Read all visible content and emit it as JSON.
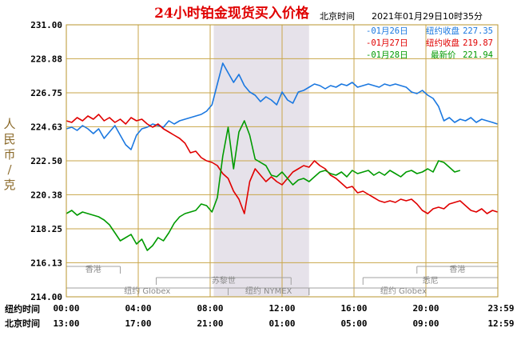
{
  "title": "24小时铂金现货买入价格",
  "header": {
    "zone_label": "北京时间",
    "timestamp": "2021年01月29日10时35分"
  },
  "ylabel": "人民币/克",
  "x_rows": {
    "ny_label": "纽约时间",
    "bj_label": "北京时间",
    "ny_ticks": [
      "00:00",
      "04:00",
      "08:00",
      "12:00",
      "16:00",
      "20:00",
      "23:59"
    ],
    "bj_ticks": [
      "13:00",
      "17:00",
      "21:00",
      "01:00",
      "05:00",
      "09:00",
      "12:59"
    ]
  },
  "legend": [
    {
      "date": "-01月26日",
      "label": "纽约收盘",
      "value": "227.35",
      "color": "#1b78e0"
    },
    {
      "date": "-01月27日",
      "label": "纽约收盘",
      "value": "219.87",
      "color": "#e00000"
    },
    {
      "date": "-01月28日",
      "label": "最新价",
      "value": "221.94",
      "color": "#009a00"
    }
  ],
  "markets": [
    {
      "label": "香港",
      "row": 1,
      "start": 0,
      "end": 3
    },
    {
      "label": "香港",
      "row": 1,
      "start": 19.5,
      "end": 24
    },
    {
      "label": "苏黎世",
      "row": 2,
      "start": 5,
      "end": 12.5
    },
    {
      "label": "悉尼",
      "row": 2,
      "start": 16.5,
      "end": 24
    },
    {
      "label": "纽约 Globex",
      "row": 3,
      "start": 0,
      "end": 9
    },
    {
      "label": "纽约 NYMEX",
      "row": 3,
      "start": 9,
      "end": 13.5
    },
    {
      "label": "纽约 Globex",
      "row": 3,
      "start": 13.5,
      "end": 24
    }
  ],
  "chart_data": {
    "type": "line",
    "title": "24小时铂金现货买入价格",
    "ylabel": "人民币/克",
    "ylim": [
      214.0,
      231.0
    ],
    "xlim": [
      0,
      24
    ],
    "x_unit": "hours (纽约时间)",
    "yticks": [
      "214.00",
      "216.13",
      "218.25",
      "220.38",
      "222.50",
      "224.63",
      "226.75",
      "228.88",
      "231.00"
    ],
    "shaded_period": [
      8.2,
      13.5
    ],
    "grid": true,
    "legend_position": "top-right",
    "series": [
      {
        "name": "01月26日",
        "color": "#1b78e0",
        "x": [
          0,
          0.3,
          0.6,
          0.9,
          1.2,
          1.5,
          1.8,
          2.1,
          2.4,
          2.7,
          3.0,
          3.3,
          3.6,
          3.9,
          4.2,
          4.5,
          4.8,
          5.1,
          5.4,
          5.7,
          6.0,
          6.3,
          6.6,
          6.9,
          7.2,
          7.5,
          7.8,
          8.1,
          8.4,
          8.7,
          9.0,
          9.3,
          9.6,
          9.9,
          10.2,
          10.5,
          10.8,
          11.1,
          11.4,
          11.7,
          12.0,
          12.3,
          12.6,
          12.9,
          13.2,
          13.5,
          13.8,
          14.1,
          14.4,
          14.7,
          15.0,
          15.3,
          15.6,
          15.9,
          16.2,
          16.5,
          16.8,
          17.1,
          17.4,
          17.7,
          18.0,
          18.3,
          18.6,
          18.9,
          19.2,
          19.5,
          19.8,
          20.1,
          20.4,
          20.7,
          21.0,
          21.3,
          21.6,
          21.9,
          22.2,
          22.5,
          22.8,
          23.1,
          23.4,
          23.7,
          23.98
        ],
        "values": [
          224.5,
          224.6,
          224.4,
          224.7,
          224.5,
          224.2,
          224.5,
          223.9,
          224.3,
          224.7,
          224.1,
          223.5,
          223.2,
          224.1,
          224.5,
          224.6,
          224.8,
          224.7,
          224.6,
          225.0,
          224.8,
          225.0,
          225.1,
          225.2,
          225.3,
          225.4,
          225.6,
          226.0,
          227.3,
          228.6,
          228.0,
          227.4,
          227.9,
          227.2,
          226.8,
          226.6,
          226.2,
          226.5,
          226.3,
          226.0,
          226.8,
          226.3,
          226.1,
          226.8,
          226.9,
          227.1,
          227.3,
          227.2,
          227.0,
          227.2,
          227.1,
          227.3,
          227.2,
          227.4,
          227.1,
          227.2,
          227.3,
          227.2,
          227.1,
          227.3,
          227.2,
          227.3,
          227.2,
          227.1,
          226.8,
          226.7,
          226.9,
          226.6,
          226.4,
          225.9,
          225.0,
          225.2,
          224.9,
          225.1,
          225.0,
          225.2,
          224.9,
          225.1,
          225.0,
          224.9,
          224.8
        ]
      },
      {
        "name": "01月27日",
        "color": "#e00000",
        "x": [
          0,
          0.3,
          0.6,
          0.9,
          1.2,
          1.5,
          1.8,
          2.1,
          2.4,
          2.7,
          3.0,
          3.3,
          3.6,
          3.9,
          4.2,
          4.5,
          4.8,
          5.1,
          5.4,
          5.7,
          6.0,
          6.3,
          6.6,
          6.9,
          7.2,
          7.5,
          7.8,
          8.1,
          8.4,
          8.7,
          9.0,
          9.3,
          9.6,
          9.9,
          10.2,
          10.5,
          10.8,
          11.1,
          11.4,
          11.7,
          12.0,
          12.3,
          12.6,
          12.9,
          13.2,
          13.5,
          13.8,
          14.1,
          14.4,
          14.7,
          15.0,
          15.3,
          15.6,
          15.9,
          16.2,
          16.5,
          16.8,
          17.1,
          17.4,
          17.7,
          18.0,
          18.3,
          18.6,
          18.9,
          19.2,
          19.5,
          19.8,
          20.1,
          20.4,
          20.7,
          21.0,
          21.3,
          21.6,
          21.9,
          22.2,
          22.5,
          22.8,
          23.1,
          23.4,
          23.7,
          23.98
        ],
        "values": [
          225.0,
          224.9,
          225.2,
          225.0,
          225.3,
          225.1,
          225.4,
          225.0,
          225.2,
          224.9,
          225.1,
          224.8,
          225.2,
          225.0,
          225.1,
          224.8,
          224.6,
          224.8,
          224.5,
          224.3,
          224.1,
          223.9,
          223.6,
          223.0,
          223.1,
          222.7,
          222.5,
          222.4,
          222.2,
          221.7,
          221.4,
          220.6,
          220.1,
          219.2,
          221.2,
          222.0,
          221.6,
          221.2,
          221.5,
          221.2,
          221.0,
          221.4,
          221.8,
          222.0,
          222.2,
          222.1,
          222.5,
          222.2,
          222.0,
          221.6,
          221.4,
          221.1,
          220.8,
          220.9,
          220.5,
          220.6,
          220.4,
          220.2,
          220.0,
          219.9,
          220.0,
          219.9,
          220.1,
          220.0,
          220.1,
          219.8,
          219.4,
          219.2,
          219.5,
          219.6,
          219.5,
          219.8,
          219.9,
          220.0,
          219.7,
          219.4,
          219.3,
          219.5,
          219.2,
          219.4,
          219.3
        ]
      },
      {
        "name": "01月28日",
        "color": "#009a00",
        "x": [
          0,
          0.3,
          0.6,
          0.9,
          1.2,
          1.5,
          1.8,
          2.1,
          2.4,
          2.7,
          3.0,
          3.3,
          3.6,
          3.9,
          4.2,
          4.5,
          4.8,
          5.1,
          5.4,
          5.7,
          6.0,
          6.3,
          6.6,
          6.9,
          7.2,
          7.5,
          7.8,
          8.1,
          8.4,
          8.7,
          9.0,
          9.3,
          9.6,
          9.9,
          10.2,
          10.5,
          10.8,
          11.1,
          11.4,
          11.7,
          12.0,
          12.3,
          12.6,
          12.9,
          13.2,
          13.5,
          13.8,
          14.1,
          14.4,
          14.7,
          15.0,
          15.3,
          15.6,
          15.9,
          16.2,
          16.5,
          16.8,
          17.1,
          17.4,
          17.7,
          18.0,
          18.3,
          18.6,
          18.9,
          19.2,
          19.5,
          19.8,
          20.1,
          20.4,
          20.7,
          21.0,
          21.3,
          21.6,
          21.9
        ],
        "values": [
          219.2,
          219.4,
          219.1,
          219.3,
          219.2,
          219.1,
          219.0,
          218.8,
          218.5,
          218.0,
          217.5,
          217.7,
          217.9,
          217.3,
          217.6,
          216.9,
          217.2,
          217.7,
          217.5,
          218.0,
          218.6,
          219.0,
          219.2,
          219.3,
          219.4,
          219.8,
          219.7,
          219.3,
          220.2,
          222.8,
          224.6,
          222.0,
          224.3,
          225.0,
          224.1,
          222.6,
          222.4,
          222.2,
          221.6,
          221.5,
          221.8,
          221.4,
          221.0,
          221.3,
          221.4,
          221.2,
          221.5,
          221.8,
          221.9,
          221.7,
          221.6,
          221.8,
          221.5,
          221.9,
          221.7,
          221.8,
          221.9,
          221.6,
          221.8,
          221.6,
          221.9,
          221.7,
          221.5,
          221.8,
          221.9,
          221.7,
          221.8,
          222.0,
          221.8,
          222.5,
          222.4,
          222.1,
          221.8,
          221.9
        ]
      }
    ]
  }
}
